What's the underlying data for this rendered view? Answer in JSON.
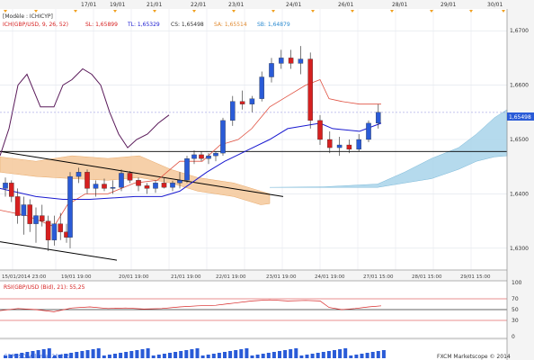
{
  "chart_data": {
    "type": "candlestick",
    "date_labels": [
      "17/01",
      "19/01",
      "21/01",
      "22/01",
      "23/01",
      "24/01",
      "26/01",
      "28/01",
      "29/01",
      "30/01"
    ],
    "time_labels": [
      "15/01/2014 23:00",
      "19/01 19:00",
      "20/01 19:00",
      "21/01 19:00",
      "22/01 19:00",
      "23/01 19:00",
      "24/01 19:00",
      "27/01 15:00",
      "28/01 15:00",
      "29/01 15:00"
    ],
    "main_ylim": [
      1.626,
      1.674
    ],
    "main_yticks": [
      "1,6700",
      "1,6600",
      "1,6500",
      "1,6400",
      "1,6300"
    ],
    "current_price": "1,65498",
    "indicator_line": {
      "model_label": "[Modèle : ICHICYP]",
      "name": "ICH(GBP/USD, 9, 26, 52)",
      "sl": "SL: 1,65899",
      "tl": "TL: 1,65329",
      "cs": "CS: 1,65498",
      "sa": "SA: 1,65514",
      "sb": "SB: 1,64879"
    },
    "candles": [
      [
        1.641,
        1.643,
        1.6395,
        1.642
      ],
      [
        1.642,
        1.6425,
        1.6385,
        1.6395
      ],
      [
        1.6395,
        1.641,
        1.6345,
        1.636
      ],
      [
        1.636,
        1.6395,
        1.6325,
        1.638
      ],
      [
        1.638,
        1.639,
        1.633,
        1.6345
      ],
      [
        1.6345,
        1.6375,
        1.631,
        1.636
      ],
      [
        1.636,
        1.638,
        1.634,
        1.635
      ],
      [
        1.635,
        1.636,
        1.6295,
        1.6315
      ],
      [
        1.6315,
        1.636,
        1.6305,
        1.6345
      ],
      [
        1.6345,
        1.6365,
        1.6315,
        1.633
      ],
      [
        1.633,
        1.6345,
        1.631,
        1.632
      ],
      [
        1.632,
        1.644,
        1.63,
        1.6432
      ],
      [
        1.6432,
        1.6448,
        1.642,
        1.644
      ],
      [
        1.644,
        1.6445,
        1.64,
        1.641
      ],
      [
        1.641,
        1.6425,
        1.6395,
        1.6418
      ],
      [
        1.6418,
        1.6428,
        1.6405,
        1.641
      ],
      [
        1.641,
        1.6425,
        1.64,
        1.6412
      ],
      [
        1.6412,
        1.6445,
        1.6405,
        1.6438
      ],
      [
        1.6438,
        1.6442,
        1.642,
        1.6425
      ],
      [
        1.6425,
        1.643,
        1.6405,
        1.6415
      ],
      [
        1.6415,
        1.642,
        1.64,
        1.641
      ],
      [
        1.641,
        1.6425,
        1.6402,
        1.642
      ],
      [
        1.642,
        1.643,
        1.641,
        1.6412
      ],
      [
        1.6412,
        1.6424,
        1.6405,
        1.642
      ],
      [
        1.642,
        1.644,
        1.641,
        1.6425
      ],
      [
        1.6425,
        1.647,
        1.642,
        1.6465
      ],
      [
        1.6465,
        1.648,
        1.6455,
        1.6472
      ],
      [
        1.6472,
        1.6478,
        1.646,
        1.6465
      ],
      [
        1.6465,
        1.6475,
        1.6455,
        1.647
      ],
      [
        1.647,
        1.6478,
        1.646,
        1.6475
      ],
      [
        1.6475,
        1.654,
        1.647,
        1.6535
      ],
      [
        1.6535,
        1.658,
        1.6525,
        1.657
      ],
      [
        1.657,
        1.659,
        1.6555,
        1.6565
      ],
      [
        1.6565,
        1.658,
        1.655,
        1.6575
      ],
      [
        1.6575,
        1.6625,
        1.657,
        1.6615
      ],
      [
        1.6615,
        1.665,
        1.6605,
        1.664
      ],
      [
        1.664,
        1.6665,
        1.663,
        1.665
      ],
      [
        1.665,
        1.6665,
        1.663,
        1.664
      ],
      [
        1.664,
        1.6672,
        1.662,
        1.6648
      ],
      [
        1.6648,
        1.666,
        1.652,
        1.6535
      ],
      [
        1.6535,
        1.6545,
        1.649,
        1.65
      ],
      [
        1.65,
        1.6515,
        1.6475,
        1.6485
      ],
      [
        1.6485,
        1.6505,
        1.647,
        1.649
      ],
      [
        1.649,
        1.65,
        1.6475,
        1.6482
      ],
      [
        1.6482,
        1.651,
        1.6478,
        1.65
      ],
      [
        1.65,
        1.6535,
        1.6495,
        1.653
      ],
      [
        1.653,
        1.6565,
        1.652,
        1.655
      ]
    ],
    "rsi_label": "RSI(GBP/USD (Bid), 21): 55,25",
    "rsi_ticks": [
      "100",
      "70",
      "50",
      "30",
      "0"
    ],
    "volume_label": "GBPUSD Volume: 20 345",
    "copyright": "FXCM Marketscope © 2014"
  },
  "colors": {
    "bull": "#2a5bd7",
    "bear": "#d62020",
    "tenkan": "#e05040",
    "kijun": "#1a1ad0",
    "chikou": "#5a1a5a",
    "kumo_bear": "#f5c89a",
    "kumo_bull": "#a8d4ea"
  }
}
